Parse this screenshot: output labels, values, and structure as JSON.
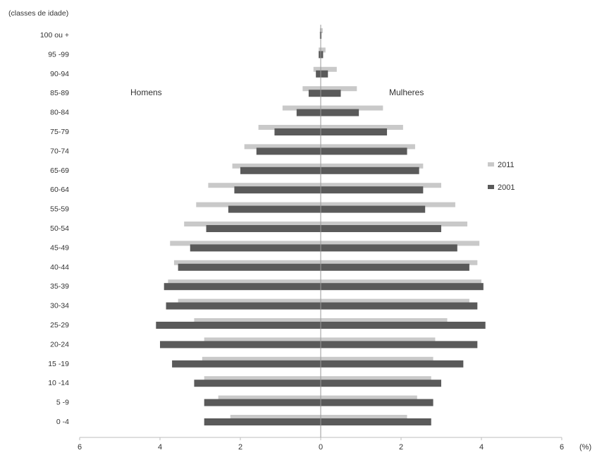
{
  "chart_data": {
    "type": "bar",
    "orientation": "horizontal",
    "ylabel": "(classes de idade)",
    "xlabel": "(%)",
    "left_group_label": "Homens",
    "right_group_label": "Mulheres",
    "categories": [
      "100 ou +",
      "95 -99",
      "90-94",
      "85-89",
      "80-84",
      "75-79",
      "70-74",
      "65-69",
      "60-64",
      "55-59",
      "50-54",
      "45-49",
      "40-44",
      "35-39",
      "30-34",
      "25-29",
      "20-24",
      "15 -19",
      "10 -14",
      "5 -9",
      "0 -4"
    ],
    "xlim": [
      -6,
      6
    ],
    "x_ticks": [
      6,
      4,
      2,
      0,
      2,
      4,
      6
    ],
    "grid": false,
    "legend_position": "right",
    "series": [
      {
        "name": "2011",
        "color": "#c9c9c9",
        "male": [
          0.02,
          0.05,
          0.18,
          0.45,
          0.95,
          1.55,
          1.9,
          2.2,
          2.8,
          3.1,
          3.4,
          3.75,
          3.65,
          3.8,
          3.55,
          3.15,
          2.9,
          2.95,
          2.9,
          2.55,
          2.25
        ],
        "female": [
          0.05,
          0.12,
          0.4,
          0.9,
          1.55,
          2.05,
          2.35,
          2.55,
          3.0,
          3.35,
          3.65,
          3.95,
          3.9,
          4.0,
          3.7,
          3.15,
          2.85,
          2.8,
          2.75,
          2.4,
          2.15
        ]
      },
      {
        "name": "2001",
        "color": "#5a5a5a",
        "male": [
          0.02,
          0.05,
          0.12,
          0.3,
          0.6,
          1.15,
          1.6,
          2.0,
          2.15,
          2.3,
          2.85,
          3.25,
          3.55,
          3.9,
          3.85,
          4.1,
          4.0,
          3.7,
          3.15,
          2.9,
          2.9
        ],
        "female": [
          0.02,
          0.06,
          0.18,
          0.5,
          0.95,
          1.65,
          2.15,
          2.45,
          2.55,
          2.6,
          3.0,
          3.4,
          3.7,
          4.05,
          3.9,
          4.1,
          3.9,
          3.55,
          3.0,
          2.8,
          2.75
        ]
      }
    ]
  }
}
